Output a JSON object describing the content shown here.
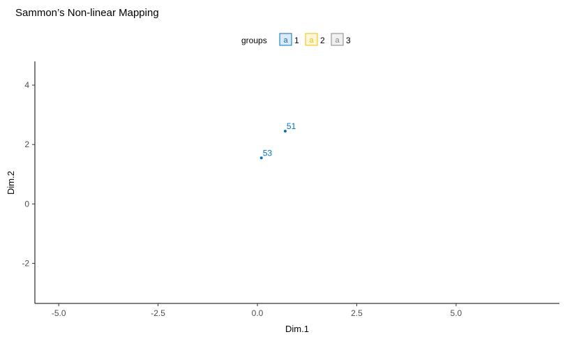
{
  "chart_data": {
    "type": "scatter",
    "title": "Sammon’s Non-linear Mapping",
    "xlabel": "Dim.1",
    "ylabel": "Dim.2",
    "xlim": [
      -5.6,
      7.6
    ],
    "ylim": [
      -3.35,
      4.8
    ],
    "xticks": [
      -5.0,
      -2.5,
      0.0,
      2.5,
      5.0
    ],
    "xtick_labels": [
      "-5.0",
      "-2.5",
      "0.0",
      "2.5",
      "5.0"
    ],
    "yticks": [
      -2,
      0,
      2,
      4
    ],
    "ytick_labels": [
      "-2",
      "0",
      "2",
      "4"
    ],
    "grid": false,
    "hull": "convex",
    "legend": {
      "title": "groups",
      "position": "top",
      "entries": [
        {
          "label": "1",
          "key_glyph": "a",
          "color": "#0073C2",
          "fill": "#DCEAF5"
        },
        {
          "label": "2",
          "key_glyph": "a",
          "color": "#EFC000",
          "fill": "#FDF6D9"
        },
        {
          "label": "3",
          "key_glyph": "a",
          "color": "#868686",
          "fill": "#F0F0F0"
        }
      ]
    },
    "series": [
      {
        "name": "1",
        "color": "#0073C2",
        "fill": "#DCEAF5",
        "points": [
          {
            "id": "51",
            "x": 0.7,
            "y": 2.45
          },
          {
            "id": "53",
            "x": 0.1,
            "y": 1.55
          }
        ]
      }
    ]
  }
}
